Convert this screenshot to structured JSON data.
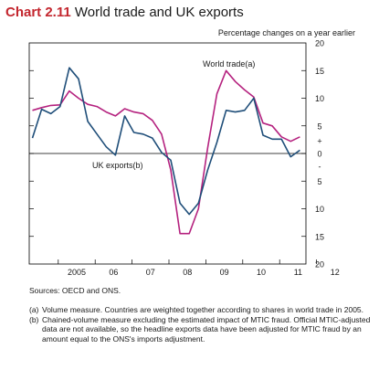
{
  "header": {
    "chart_number": "Chart 2.11",
    "title": "World trade and UK exports",
    "subtitle": "Percentage changes on a year earlier"
  },
  "chart_data": {
    "type": "line",
    "title": "World trade and UK exports",
    "ylabel": "Percentage changes on a year earlier",
    "ylim": [
      -20,
      20
    ],
    "y_ticks": [
      "20",
      "15",
      "10",
      "5",
      "+",
      "0",
      "-",
      "5",
      "10",
      "15",
      "20"
    ],
    "x_ticks": [
      "2005",
      "06",
      "07",
      "08",
      "09",
      "10",
      "11",
      "12"
    ],
    "grid": false,
    "series": [
      {
        "name": "World trade(a)",
        "color": "#b5227f",
        "points": [
          [
            "2004-Q2",
            7.8
          ],
          [
            "2004-Q3",
            8.3
          ],
          [
            "2004-Q4",
            8.7
          ],
          [
            "2005-Q1",
            8.8
          ],
          [
            "2005-Q2",
            11.3
          ],
          [
            "2005-Q3",
            10.0
          ],
          [
            "2005-Q4",
            8.9
          ],
          [
            "2006-Q1",
            8.5
          ],
          [
            "2006-Q2",
            7.5
          ],
          [
            "2006-Q3",
            6.8
          ],
          [
            "2006-Q4",
            8.1
          ],
          [
            "2007-Q1",
            7.5
          ],
          [
            "2007-Q2",
            7.2
          ],
          [
            "2007-Q3",
            6.0
          ],
          [
            "2007-Q4",
            3.5
          ],
          [
            "2008-Q1",
            -3.0
          ],
          [
            "2008-Q2",
            -14.5
          ],
          [
            "2008-Q3",
            -14.5
          ],
          [
            "2008-Q4",
            -10.0
          ],
          [
            "2009-Q1",
            1.0
          ],
          [
            "2009-Q2",
            10.8
          ],
          [
            "2009-Q3",
            15.0
          ],
          [
            "2009-Q4",
            13.0
          ],
          [
            "2010-Q1",
            11.5
          ],
          [
            "2010-Q2",
            10.2
          ],
          [
            "2010-Q3",
            5.5
          ],
          [
            "2010-Q4",
            5.0
          ],
          [
            "2011-Q1",
            3.0
          ],
          [
            "2011-Q2",
            2.2
          ],
          [
            "2011-Q3",
            3.0
          ]
        ]
      },
      {
        "name": "UK exports(b)",
        "color": "#1f4e79",
        "points": [
          [
            "2004-Q2",
            2.8
          ],
          [
            "2004-Q3",
            8.0
          ],
          [
            "2004-Q4",
            7.2
          ],
          [
            "2005-Q1",
            8.5
          ],
          [
            "2005-Q2",
            15.5
          ],
          [
            "2005-Q3",
            13.5
          ],
          [
            "2005-Q4",
            5.8
          ],
          [
            "2006-Q1",
            3.5
          ],
          [
            "2006-Q2",
            1.2
          ],
          [
            "2006-Q3",
            -0.3
          ],
          [
            "2006-Q4",
            6.8
          ],
          [
            "2007-Q1",
            3.8
          ],
          [
            "2007-Q2",
            3.5
          ],
          [
            "2007-Q3",
            2.8
          ],
          [
            "2007-Q4",
            0.2
          ],
          [
            "2008-Q1",
            -1.2
          ],
          [
            "2008-Q2",
            -9.0
          ],
          [
            "2008-Q3",
            -11.0
          ],
          [
            "2008-Q4",
            -9.0
          ],
          [
            "2009-Q1",
            -3.0
          ],
          [
            "2009-Q2",
            2.0
          ],
          [
            "2009-Q3",
            7.8
          ],
          [
            "2009-Q4",
            7.5
          ],
          [
            "2010-Q1",
            7.8
          ],
          [
            "2010-Q2",
            10.0
          ],
          [
            "2010-Q3",
            3.3
          ],
          [
            "2010-Q4",
            2.6
          ],
          [
            "2011-Q1",
            2.6
          ],
          [
            "2011-Q2",
            -0.6
          ],
          [
            "2011-Q3",
            0.6
          ]
        ]
      }
    ],
    "annotations": [
      "World trade(a)",
      "UK exports(b)"
    ]
  },
  "footer": {
    "sources": "Sources: OECD and ONS.",
    "notes": [
      {
        "marker": "(a)",
        "text": "Volume measure. Countries are weighted together according to shares in world trade in 2005."
      },
      {
        "marker": "(b)",
        "text": "Chained-volume measure excluding the estimated impact of MTIC fraud. Official MTIC-adjusted data are not available, so the headline exports data have been adjusted for MTIC fraud by an amount equal to the ONS's imports adjustment."
      }
    ]
  }
}
